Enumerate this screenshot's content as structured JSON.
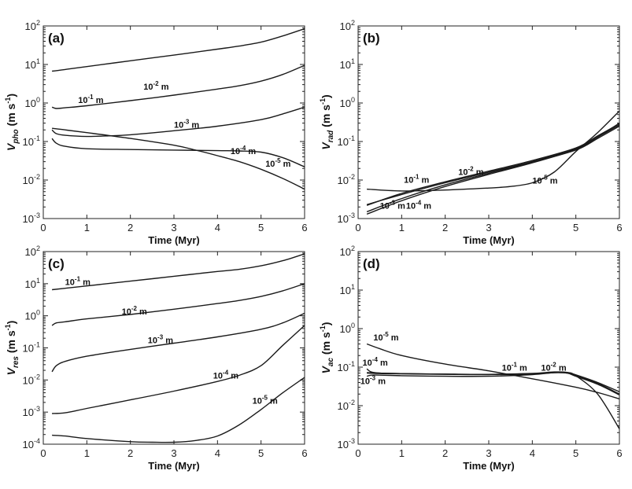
{
  "chart_data": [
    {
      "type": "line",
      "panel_label": "(a)",
      "xlabel": "Time (Myr)",
      "ylabel": {
        "symbol": "V",
        "sub": "pho",
        "unit": " (m s",
        "sup": "-1",
        "close": ")"
      },
      "log_y": true,
      "xlim": [
        0,
        6
      ],
      "ylim_exp": [
        -3,
        2
      ],
      "series": [
        {
          "name": "10^-1 m",
          "label_base": "10",
          "label_exp": "-1",
          "label_unit": " m",
          "label_at": [
            0.8,
            1.0
          ],
          "x": [
            0.2,
            0.5,
            1,
            2,
            3,
            4,
            4.5,
            5,
            5.5,
            6
          ],
          "y": [
            6.7,
            7.4,
            8.8,
            12.5,
            17.5,
            25,
            30,
            38,
            55,
            85
          ]
        },
        {
          "name": "10^-2 m",
          "label_base": "10",
          "label_exp": "-2",
          "label_unit": " m",
          "label_at": [
            2.3,
            2.2
          ],
          "x": [
            0.2,
            0.3,
            0.5,
            1,
            2,
            3,
            4,
            4.5,
            5,
            5.5,
            6
          ],
          "y": [
            0.78,
            0.72,
            0.75,
            0.85,
            1.15,
            1.6,
            2.3,
            2.8,
            3.7,
            5.5,
            9.5
          ]
        },
        {
          "name": "10^-3 m",
          "label_base": "10",
          "label_exp": "-3",
          "label_unit": " m",
          "label_at": [
            3.0,
            0.23
          ],
          "x": [
            0.2,
            0.3,
            0.5,
            1,
            1.5,
            2,
            3,
            4,
            5,
            5.5,
            6
          ],
          "y": [
            0.2,
            0.16,
            0.145,
            0.135,
            0.14,
            0.15,
            0.19,
            0.25,
            0.37,
            0.52,
            0.78
          ]
        },
        {
          "name": "10^-4 m",
          "label_base": "10",
          "label_exp": "-4",
          "label_unit": " m",
          "label_at": [
            4.3,
            0.047
          ],
          "x": [
            0.2,
            0.3,
            0.5,
            1,
            2,
            3,
            4,
            4.5,
            5,
            5.5,
            6
          ],
          "y": [
            0.12,
            0.09,
            0.075,
            0.065,
            0.062,
            0.06,
            0.058,
            0.057,
            0.053,
            0.038,
            0.022
          ]
        },
        {
          "name": "10^-5 m",
          "label_base": "10",
          "label_exp": "-5",
          "label_unit": " m",
          "label_at": [
            5.1,
            0.022
          ],
          "x": [
            0.2,
            0.5,
            1,
            2,
            3,
            3.5,
            4,
            4.5,
            5,
            5.5,
            6
          ],
          "y": [
            0.22,
            0.2,
            0.17,
            0.12,
            0.08,
            0.06,
            0.043,
            0.03,
            0.019,
            0.011,
            0.0058
          ]
        }
      ]
    },
    {
      "type": "line",
      "panel_label": "(b)",
      "xlabel": "Time (Myr)",
      "ylabel": {
        "symbol": "V",
        "sub": "rad",
        "unit": " (m s",
        "sup": "-1",
        "close": ")"
      },
      "log_y": true,
      "xlim": [
        0,
        6
      ],
      "ylim_exp": [
        -3,
        2
      ],
      "series": [
        {
          "name": "10^-1 m",
          "label_base": "10",
          "label_exp": "-1",
          "label_unit": " m",
          "label_at": [
            1.05,
            0.0085
          ],
          "x": [
            0.2,
            1,
            2,
            3,
            4,
            5,
            5.5,
            6
          ],
          "y": [
            0.0023,
            0.0042,
            0.0085,
            0.016,
            0.03,
            0.065,
            0.13,
            0.27
          ]
        },
        {
          "name": "10^-2 m",
          "label_base": "10",
          "label_exp": "-2",
          "label_unit": " m",
          "label_at": [
            2.3,
            0.0135
          ],
          "x": [
            0.2,
            1,
            2,
            3,
            4,
            5,
            5.5,
            6
          ],
          "y": [
            0.0022,
            0.0045,
            0.009,
            0.017,
            0.032,
            0.068,
            0.14,
            0.29
          ]
        },
        {
          "name": "10^-3 m",
          "label_base": "10",
          "label_exp": "-3",
          "label_unit": " m",
          "label_at": [
            0.5,
            0.0018
          ],
          "x": [
            0.2,
            1,
            2,
            3,
            4,
            5,
            5.5,
            6
          ],
          "y": [
            0.0015,
            0.0033,
            0.0075,
            0.015,
            0.029,
            0.06,
            0.12,
            0.25
          ]
        },
        {
          "name": "10^-4 m",
          "label_base": "10",
          "label_exp": "-4",
          "label_unit": " m",
          "label_at": [
            1.1,
            0.0018
          ],
          "x": [
            0.2,
            1,
            2,
            3,
            4,
            5,
            5.5,
            6
          ],
          "y": [
            0.0013,
            0.0029,
            0.0068,
            0.014,
            0.028,
            0.062,
            0.13,
            0.3
          ]
        },
        {
          "name": "10^-5 m",
          "label_base": "10",
          "label_exp": "-5",
          "label_unit": " m",
          "label_at": [
            4.0,
            0.008
          ],
          "x": [
            0.2,
            1,
            2,
            3,
            3.5,
            4,
            4.5,
            5,
            5.5,
            6
          ],
          "y": [
            0.0058,
            0.0052,
            0.0055,
            0.0062,
            0.0068,
            0.0085,
            0.016,
            0.055,
            0.17,
            0.62
          ]
        }
      ]
    },
    {
      "type": "line",
      "panel_label": "(c)",
      "xlabel": "Time (Myr)",
      "ylabel": {
        "symbol": "V",
        "sub": "res",
        "unit": " (m s",
        "sup": "-1",
        "close": ")"
      },
      "log_y": true,
      "xlim": [
        0,
        6
      ],
      "ylim_exp": [
        -4,
        2
      ],
      "series": [
        {
          "name": "10^-1 m",
          "label_base": "10",
          "label_exp": "-1",
          "label_unit": " m",
          "label_at": [
            0.5,
            9
          ],
          "x": [
            0.2,
            0.5,
            1,
            2,
            3,
            4,
            4.5,
            5,
            5.5,
            6
          ],
          "y": [
            6.5,
            7.2,
            8.5,
            12,
            17,
            24,
            28,
            36,
            52,
            85
          ]
        },
        {
          "name": "10^-2 m",
          "label_base": "10",
          "label_exp": "-2",
          "label_unit": " m",
          "label_at": [
            1.8,
            1.1
          ],
          "x": [
            0.2,
            0.3,
            0.5,
            1,
            2,
            3,
            4,
            4.5,
            5,
            5.5,
            6
          ],
          "y": [
            0.5,
            0.6,
            0.65,
            0.8,
            1.1,
            1.6,
            2.4,
            3.0,
            4.0,
            6.0,
            10
          ]
        },
        {
          "name": "10^-3 m",
          "label_base": "10",
          "label_exp": "-3",
          "label_unit": " m",
          "label_at": [
            2.4,
            0.14
          ],
          "x": [
            0.2,
            0.3,
            0.5,
            1,
            2,
            3,
            4,
            5,
            5.5,
            6
          ],
          "y": [
            0.018,
            0.028,
            0.038,
            0.055,
            0.09,
            0.14,
            0.22,
            0.38,
            0.6,
            1.2
          ]
        },
        {
          "name": "10^-4 m",
          "label_base": "10",
          "label_exp": "-4",
          "label_unit": " m",
          "label_at": [
            3.9,
            0.011
          ],
          "x": [
            0.2,
            0.5,
            1,
            2,
            3,
            4,
            4.5,
            5,
            5.5,
            6
          ],
          "y": [
            0.0009,
            0.00095,
            0.0013,
            0.0024,
            0.0045,
            0.009,
            0.014,
            0.028,
            0.12,
            0.5
          ]
        },
        {
          "name": "10^-5 m",
          "label_base": "10",
          "label_exp": "-5",
          "label_unit": " m",
          "label_at": [
            4.8,
            0.0018
          ],
          "x": [
            0.2,
            0.5,
            1,
            2,
            2.5,
            3,
            3.5,
            4,
            4.5,
            5,
            5.5,
            6
          ],
          "y": [
            0.00019,
            0.00018,
            0.00015,
            0.00012,
            0.000115,
            0.000115,
            0.00013,
            0.00018,
            0.0004,
            0.0012,
            0.004,
            0.012
          ]
        }
      ]
    },
    {
      "type": "line",
      "panel_label": "(d)",
      "xlabel": "Time (Myr)",
      "ylabel": {
        "symbol": "V",
        "sub": "ac",
        "unit": " (m s",
        "sup": "-1",
        "close": ")"
      },
      "log_y": true,
      "xlim": [
        0,
        6
      ],
      "ylim_exp": [
        -3,
        2
      ],
      "series": [
        {
          "name": "10^-1 m",
          "label_base": "10",
          "label_exp": "-1",
          "label_unit": " m",
          "label_at": [
            3.3,
            0.08
          ],
          "x": [
            0.2,
            0.5,
            1,
            2,
            3,
            4,
            4.5,
            4.8,
            5,
            5.5,
            6
          ],
          "y": [
            0.07,
            0.068,
            0.067,
            0.065,
            0.064,
            0.066,
            0.072,
            0.07,
            0.06,
            0.038,
            0.02
          ]
        },
        {
          "name": "10^-2 m",
          "label_base": "10",
          "label_exp": "-2",
          "label_unit": " m",
          "label_at": [
            4.2,
            0.08
          ],
          "x": [
            0.2,
            0.5,
            1,
            2,
            3,
            4,
            4.5,
            4.8,
            5,
            5.5,
            6
          ],
          "y": [
            0.072,
            0.07,
            0.068,
            0.066,
            0.065,
            0.068,
            0.074,
            0.072,
            0.063,
            0.04,
            0.023
          ]
        },
        {
          "name": "10^-3 m",
          "label_base": "10",
          "label_exp": "-3",
          "label_unit": " m",
          "label_at": [
            0.05,
            0.036
          ],
          "x": [
            0.2,
            0.3,
            0.5,
            1,
            2,
            3,
            4,
            4.5,
            4.8,
            5,
            5.5,
            6
          ],
          "y": [
            0.058,
            0.062,
            0.062,
            0.06,
            0.058,
            0.058,
            0.064,
            0.072,
            0.07,
            0.058,
            0.036,
            0.019
          ]
        },
        {
          "name": "10^-4 m",
          "label_base": "10",
          "label_exp": "-4",
          "label_unit": " m",
          "label_at": [
            0.1,
            0.11
          ],
          "x": [
            0.2,
            0.3,
            0.5,
            1,
            2,
            3,
            4,
            4.5,
            4.8,
            5,
            5.5,
            6
          ],
          "y": [
            0.09,
            0.075,
            0.07,
            0.068,
            0.066,
            0.065,
            0.069,
            0.075,
            0.073,
            0.06,
            0.02,
            0.0025
          ]
        },
        {
          "name": "10^-5 m",
          "label_base": "10",
          "label_exp": "-5",
          "label_unit": " m",
          "label_at": [
            0.35,
            0.5
          ],
          "x": [
            0.2,
            0.5,
            1,
            2,
            3,
            4,
            5,
            5.5,
            6
          ],
          "y": [
            0.4,
            0.3,
            0.2,
            0.12,
            0.08,
            0.05,
            0.03,
            0.022,
            0.015
          ]
        }
      ]
    }
  ]
}
